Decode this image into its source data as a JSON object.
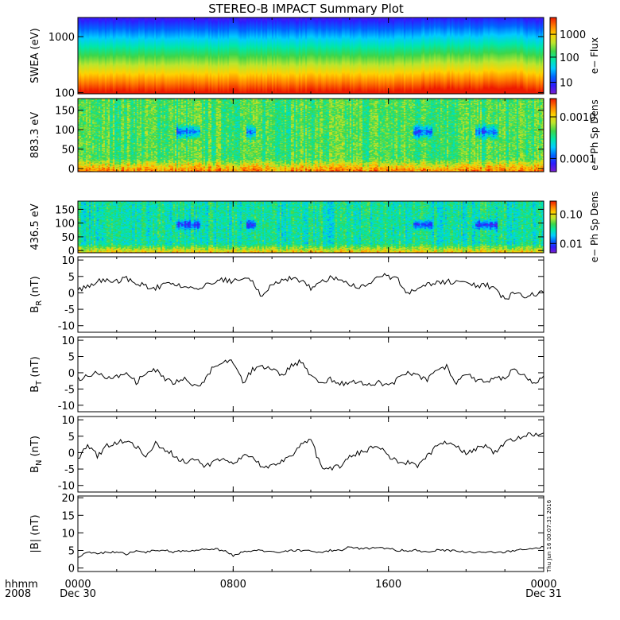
{
  "title": "STEREO-B IMPACT Summary Plot",
  "stamp": "Thu Jun 16 00:07:31 2016",
  "time_axis": {
    "corner_top": "hhmm",
    "corner_bottom": "2008",
    "ticks": [
      {
        "label": "0000",
        "sub": "Dec 30",
        "hours": 0
      },
      {
        "label": "0800",
        "sub": "",
        "hours": 8
      },
      {
        "label": "1600",
        "sub": "",
        "hours": 16
      },
      {
        "label": "0000",
        "sub": "Dec 31",
        "hours": 24
      }
    ]
  },
  "chart_data": [
    {
      "type": "heatmap",
      "id": "swea",
      "ylabel": "SWEA (eV)",
      "colorbar_label": "e− Flux",
      "y_scale": "log",
      "yticks": [
        {
          "v": 100,
          "t": "100"
        },
        {
          "v": 1000,
          "t": "1000"
        }
      ],
      "ylim": [
        95,
        2200
      ],
      "colorbar_ticks": [
        "1000",
        "100",
        "10"
      ],
      "colorbar_scale": "log",
      "colorbar_range": [
        3,
        3000
      ]
    },
    {
      "type": "heatmap",
      "id": "pad883",
      "ylabel": "883.3 eV",
      "colorbar_label": "e− Ph Sp Dens",
      "yticks": [
        {
          "v": 0,
          "t": "0"
        },
        {
          "v": 50,
          "t": "50"
        },
        {
          "v": 100,
          "t": "100"
        },
        {
          "v": 150,
          "t": "150"
        }
      ],
      "ylim": [
        -8,
        180
      ],
      "colorbar_ticks": [
        "0.0010",
        "0.0001"
      ],
      "colorbar_scale": "log",
      "colorbar_range": [
        3e-05,
        0.003
      ]
    },
    {
      "type": "heatmap",
      "id": "pad436",
      "ylabel": "436.5 eV",
      "colorbar_label": "e− Ph Sp Dens",
      "yticks": [
        {
          "v": 0,
          "t": "0"
        },
        {
          "v": 50,
          "t": "50"
        },
        {
          "v": 100,
          "t": "100"
        },
        {
          "v": 150,
          "t": "150"
        }
      ],
      "ylim": [
        -8,
        180
      ],
      "colorbar_ticks": [
        "0.10",
        "0.01"
      ],
      "colorbar_scale": "log",
      "colorbar_range": [
        0.003,
        0.15
      ]
    },
    {
      "type": "line",
      "id": "br",
      "ylabel_main": "B",
      "ylabel_sub": "R",
      "ylabel_unit": " (nT)",
      "ylim": [
        -12,
        11
      ],
      "yticks": [
        "10",
        "5",
        "0",
        "-5",
        "-10"
      ],
      "ytick_values": [
        10,
        5,
        0,
        -5,
        -10
      ],
      "x": [
        0,
        0.5,
        1,
        1.5,
        2,
        2.5,
        3,
        3.5,
        4,
        4.5,
        5,
        5.5,
        6,
        6.5,
        7,
        7.5,
        8,
        8.5,
        9,
        9.5,
        10,
        10.5,
        11,
        11.5,
        12,
        12.5,
        13,
        13.5,
        14,
        14.5,
        15,
        15.5,
        16,
        16.5,
        17,
        17.5,
        18,
        18.5,
        19,
        19.5,
        20,
        20.5,
        21,
        21.5,
        22,
        22.5,
        23,
        23.5,
        24
      ],
      "y": [
        1,
        2,
        3.5,
        4,
        3.5,
        4.5,
        3,
        2,
        1.5,
        2.5,
        3,
        2,
        1.5,
        2,
        3.5,
        4,
        3.5,
        4.5,
        3.5,
        -1.5,
        2.5,
        3.5,
        4.5,
        3.5,
        1.5,
        3.5,
        4.5,
        4,
        2.5,
        2,
        2.5,
        5.5,
        5,
        4,
        0,
        1,
        2.5,
        3,
        3.5,
        3,
        3.5,
        2,
        2.5,
        1,
        -2,
        0,
        -1,
        -0.5,
        0
      ]
    },
    {
      "type": "line",
      "id": "bt",
      "ylabel_main": "B",
      "ylabel_sub": "T",
      "ylabel_unit": " (nT)",
      "ylim": [
        -12,
        11
      ],
      "yticks": [
        "10",
        "5",
        "0",
        "-5",
        "-10"
      ],
      "ytick_values": [
        10,
        5,
        0,
        -5,
        -10
      ],
      "x": [
        0,
        0.5,
        1,
        1.5,
        2,
        2.5,
        3,
        3.5,
        4,
        4.5,
        5,
        5.5,
        6,
        6.5,
        7,
        7.5,
        8,
        8.5,
        9,
        9.5,
        10,
        10.5,
        11,
        11.5,
        12,
        12.5,
        13,
        13.5,
        14,
        14.5,
        15,
        15.5,
        16,
        16.5,
        17,
        17.5,
        18,
        18.5,
        19,
        19.5,
        20,
        20.5,
        21,
        21.5,
        22,
        22.5,
        23,
        23.5,
        24
      ],
      "y": [
        -2,
        -1,
        0,
        -2,
        -1,
        0,
        -3,
        0,
        1,
        -2,
        -3,
        -2,
        -4,
        -3,
        2,
        3,
        3.5,
        -3,
        1,
        2,
        1,
        -1,
        2,
        3.5,
        -1,
        -3,
        -2,
        -3.5,
        -3,
        -3,
        -4,
        -3,
        -4,
        -2,
        0,
        -1,
        -2,
        1,
        2,
        -3,
        0,
        -2,
        -3,
        -1.5,
        -2,
        1.5,
        -1,
        -3,
        -1
      ]
    },
    {
      "type": "line",
      "id": "bn",
      "ylabel_main": "B",
      "ylabel_sub": "N",
      "ylabel_unit": " (nT)",
      "ylim": [
        -12,
        11
      ],
      "yticks": [
        "10",
        "5",
        "0",
        "-5",
        "-10"
      ],
      "ytick_values": [
        10,
        5,
        0,
        -5,
        -10
      ],
      "x": [
        0,
        0.5,
        1,
        1.5,
        2,
        2.5,
        3,
        3.5,
        4,
        4.5,
        5,
        5.5,
        6,
        6.5,
        7,
        7.5,
        8,
        8.5,
        9,
        9.5,
        10,
        10.5,
        11,
        11.5,
        12,
        12.5,
        13,
        13.5,
        14,
        14.5,
        15,
        15.5,
        16,
        16.5,
        17,
        17.5,
        18,
        18.5,
        19,
        19.5,
        20,
        20.5,
        21,
        21.5,
        22,
        22.5,
        23,
        23.5,
        24
      ],
      "y": [
        -2,
        2,
        -1,
        2,
        3,
        4,
        2,
        -1,
        3,
        1,
        -1,
        -3,
        -2,
        -4,
        -3,
        -2,
        -3,
        -1,
        -2,
        -4,
        -4,
        -3,
        -1,
        3,
        4,
        -4,
        -5,
        -4,
        -1,
        0,
        1,
        2,
        -1,
        -3,
        -3,
        -4,
        -1,
        2,
        3,
        2,
        0,
        1,
        2,
        0,
        3,
        4,
        5.5,
        5.5,
        6
      ]
    },
    {
      "type": "line",
      "id": "btot",
      "ylabel_main": "|B|",
      "ylabel_sub": "",
      "ylabel_unit": " (nT)",
      "ylim": [
        -1,
        20.5
      ],
      "yticks": [
        "20",
        "15",
        "10",
        "5",
        "0"
      ],
      "ytick_values": [
        20,
        15,
        10,
        5,
        0
      ],
      "x": [
        0,
        0.5,
        1,
        1.5,
        2,
        2.5,
        3,
        3.5,
        4,
        4.5,
        5,
        5.5,
        6,
        6.5,
        7,
        7.5,
        8,
        8.5,
        9,
        9.5,
        10,
        10.5,
        11,
        11.5,
        12,
        12.5,
        13,
        13.5,
        14,
        14.5,
        15,
        15.5,
        16,
        16.5,
        17,
        17.5,
        18,
        18.5,
        19,
        19.5,
        20,
        20.5,
        21,
        21.5,
        22,
        22.5,
        23,
        23.5,
        24
      ],
      "y": [
        3,
        4.5,
        4,
        4.5,
        4.5,
        4,
        5,
        4.5,
        5,
        5,
        4.5,
        5,
        5,
        5.5,
        5.5,
        5,
        3.5,
        4.5,
        5,
        5,
        4.5,
        4.5,
        5,
        5,
        5,
        4.5,
        5,
        5,
        6,
        5.5,
        5.5,
        6,
        5.5,
        5,
        5,
        5,
        4.5,
        5,
        5,
        5,
        4.5,
        4.5,
        4.5,
        4.5,
        4.5,
        5,
        5.5,
        5.5,
        6
      ]
    }
  ],
  "colors": {
    "colormap": [
      "#7a1fcf",
      "#2d1dff",
      "#0066ff",
      "#00ccff",
      "#00e8a8",
      "#3dd64a",
      "#bce52d",
      "#ffd200",
      "#ff7a00",
      "#ee1a00"
    ]
  }
}
